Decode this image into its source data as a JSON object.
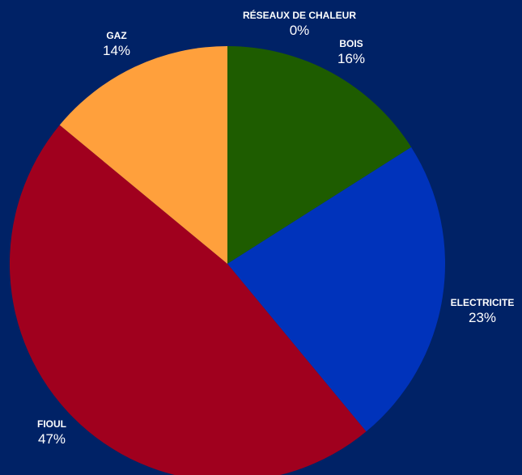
{
  "chart_data": {
    "type": "pie",
    "title": "",
    "slices": [
      {
        "label": "BOIS",
        "value": 16,
        "value_label": "16%",
        "color": "#1e5c00"
      },
      {
        "label": "ELECTRICITE",
        "value": 23,
        "value_label": "23%",
        "color": "#0033bb"
      },
      {
        "label": "FIOUL",
        "value": 47,
        "value_label": "47%",
        "color": "#a0001e"
      },
      {
        "label": "GAZ",
        "value": 14,
        "value_label": "14%",
        "color": "#ffa03c"
      },
      {
        "label": "RÉSEAUX DE  CHALEUR",
        "value": 0,
        "value_label": "0%",
        "color": "#888888"
      }
    ],
    "background": "#002266",
    "start_angle": "12 o'clock",
    "direction": "clockwise",
    "legend": "none (labels placed around slices)"
  }
}
